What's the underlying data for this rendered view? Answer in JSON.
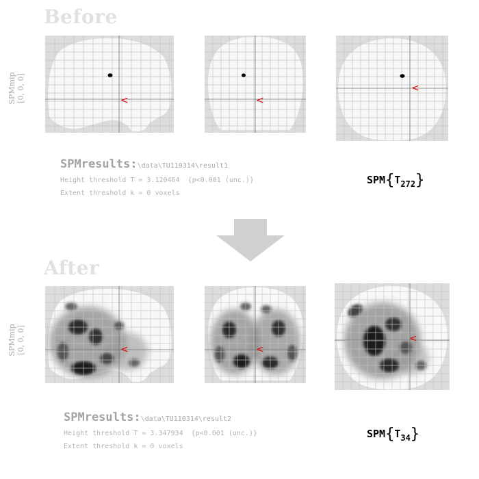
{
  "before": {
    "title": "Before",
    "side_label": {
      "name": "SPMmip",
      "coords": "[0, 0, 0]"
    },
    "results": {
      "label": "SPMresults:",
      "path": "\\data\\TU110314\\result1",
      "height": "Height threshold T = 3.120464  {p<0.001 (unc.)}",
      "extent": "Extent threshold k = 0 voxels"
    },
    "stat": {
      "prefix": "SPM",
      "letter": "T",
      "df": "272"
    },
    "cursor_glyph": "<"
  },
  "after": {
    "title": "After",
    "side_label": {
      "name": "SPMmip",
      "coords": "[0, 0, 0]"
    },
    "results": {
      "label": "SPMresults:",
      "path": "\\data\\TU110314\\result2",
      "height": "Height threshold T = 3.347934  {p<0.001 (unc.)}",
      "extent": "Extent threshold k = 0 voxels"
    },
    "stat": {
      "prefix": "SPM",
      "letter": "T",
      "df": "34"
    },
    "cursor_glyph": "<"
  },
  "colors": {
    "cursor": "#e00000",
    "brain": "#f8f8f8",
    "background_grey": "#dcdcdc",
    "arrow": "#d0d0d0"
  }
}
